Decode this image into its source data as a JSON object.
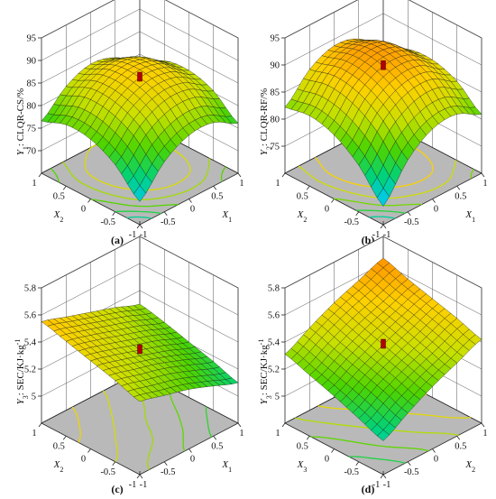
{
  "colors": {
    "floor": "#b9b9b9",
    "box_line": "#222222",
    "mesh_line": "#1a1a1a",
    "center_marker": "#b30000",
    "colormap": [
      "#1e90ff",
      "#00c8ff",
      "#00d27a",
      "#4cd400",
      "#c8e000",
      "#ffd000",
      "#ff8c00",
      "#ff2a00"
    ]
  },
  "chart_data": [
    {
      "type": "surface",
      "panel_label": "(a)",
      "zlabel_main": "Y",
      "zlabel_sub": "1",
      "zlabel_rest": ": CLQR-CS/%",
      "xlabel_main": "X",
      "xlabel_sub": "1",
      "ylabel_main": "X",
      "ylabel_sub": "2",
      "x_ticks": [
        "-1",
        "-0.5",
        "0",
        "0.5",
        "1"
      ],
      "y_ticks": [
        "-1",
        "-0.5",
        "0",
        "0.5",
        "1"
      ],
      "z_ticks": [
        "70",
        "75",
        "80",
        "85",
        "90",
        "95"
      ],
      "zlim": [
        65,
        95
      ],
      "grid_x": [
        -1,
        -0.5,
        0,
        0.5,
        1
      ],
      "grid_y": [
        -1,
        -0.5,
        0,
        0.5,
        1
      ],
      "z_values": [
        [
          70.1,
          76.1,
          79.1,
          79.1,
          76.1
        ],
        [
          75.4,
          81.1,
          83.9,
          83.6,
          80.4
        ],
        [
          78.2,
          83.6,
          86.2,
          85.6,
          82.1
        ],
        [
          78.6,
          83.8,
          86.1,
          85.1,
          81.4
        ],
        [
          76.6,
          81.4,
          83.5,
          82.1,
          78.1
        ]
      ],
      "center_point": {
        "x": 0,
        "y": 0,
        "z": 86.2
      }
    },
    {
      "type": "surface",
      "panel_label": "(b)",
      "zlabel_main": "Y",
      "zlabel_sub": "2",
      "zlabel_rest": ": CLQR-RF/%",
      "xlabel_main": "X",
      "xlabel_sub": "1",
      "ylabel_main": "X",
      "ylabel_sub": "2",
      "x_ticks": [
        "-1",
        "-0.5",
        "0",
        "0.5",
        "1"
      ],
      "y_ticks": [
        "-1",
        "-0.5",
        "0",
        "0.5",
        "1"
      ],
      "z_ticks": [
        "75",
        "80",
        "85",
        "90",
        "95"
      ],
      "zlim": [
        70,
        95
      ],
      "grid_x": [
        -1,
        -0.5,
        0,
        0.5,
        1
      ],
      "grid_y": [
        -1,
        -0.5,
        0,
        0.5,
        1
      ],
      "z_values": [
        [
          73.4,
          79.6,
          82.9,
          83.3,
          80.9
        ],
        [
          78.6,
          84.4,
          87.3,
          87.4,
          84.6
        ],
        [
          81.8,
          87.2,
          89.8,
          89.5,
          86.2
        ],
        [
          83.0,
          88.0,
          90.3,
          89.6,
          85.8
        ],
        [
          82.2,
          86.8,
          88.8,
          87.7,
          83.5
        ]
      ],
      "center_point": {
        "x": 0,
        "y": 0,
        "z": 89.8
      }
    },
    {
      "type": "surface",
      "panel_label": "(c)",
      "zlabel_main": "Y",
      "zlabel_sub": "3",
      "zlabel_rest": ": SEC/KJ·kg",
      "zlabel_sup": "-1",
      "xlabel_main": "X",
      "xlabel_sub": "1",
      "ylabel_main": "X",
      "ylabel_sub": "2",
      "x_ticks": [
        "-1",
        "-0.5",
        "0",
        "0.5",
        "1"
      ],
      "y_ticks": [
        "-1",
        "-0.5",
        "0",
        "0.5",
        "1"
      ],
      "z_ticks": [
        "5",
        "5.2",
        "5.4",
        "5.6",
        "5.8"
      ],
      "zlim": [
        4.8,
        5.8
      ],
      "grid_x": [
        -1,
        -0.5,
        0,
        0.5,
        1
      ],
      "grid_y": [
        -1,
        -0.5,
        0,
        0.5,
        1
      ],
      "z_values": [
        [
          5.34,
          5.29,
          5.24,
          5.17,
          5.1
        ],
        [
          5.4,
          5.35,
          5.3,
          5.23,
          5.16
        ],
        [
          5.45,
          5.4,
          5.34,
          5.28,
          5.21
        ],
        [
          5.5,
          5.45,
          5.39,
          5.33,
          5.26
        ],
        [
          5.55,
          5.49,
          5.43,
          5.37,
          5.3
        ]
      ],
      "center_point": {
        "x": 0,
        "y": 0,
        "z": 5.34
      }
    },
    {
      "type": "surface",
      "panel_label": "(d)",
      "zlabel_main": "Y",
      "zlabel_sub": "3",
      "zlabel_rest": ": SEC/KJ·kg",
      "zlabel_sup": "-1",
      "xlabel_main": "X",
      "xlabel_sub": "2",
      "ylabel_main": "X",
      "ylabel_sub": "3",
      "x_ticks": [
        "-1",
        "-0.5",
        "0",
        "0.5",
        "1"
      ],
      "y_ticks": [
        "-1",
        "-0.5",
        "0",
        "0.5",
        "1"
      ],
      "z_ticks": [
        "5",
        "5.2",
        "5.4",
        "5.6",
        "5.8"
      ],
      "zlim": [
        4.8,
        5.8
      ],
      "grid_x": [
        -1,
        -0.5,
        0,
        0.5,
        1
      ],
      "grid_y": [
        -1,
        -0.5,
        0,
        0.5,
        1
      ],
      "z_values": [
        [
          5.05,
          5.16,
          5.26,
          5.34,
          5.42
        ],
        [
          5.12,
          5.23,
          5.32,
          5.4,
          5.48
        ],
        [
          5.19,
          5.29,
          5.38,
          5.46,
          5.53
        ],
        [
          5.25,
          5.35,
          5.44,
          5.51,
          5.58
        ],
        [
          5.31,
          5.41,
          5.5,
          5.57,
          5.64
        ]
      ],
      "center_point": {
        "x": 0,
        "y": 0,
        "z": 5.38
      }
    }
  ]
}
